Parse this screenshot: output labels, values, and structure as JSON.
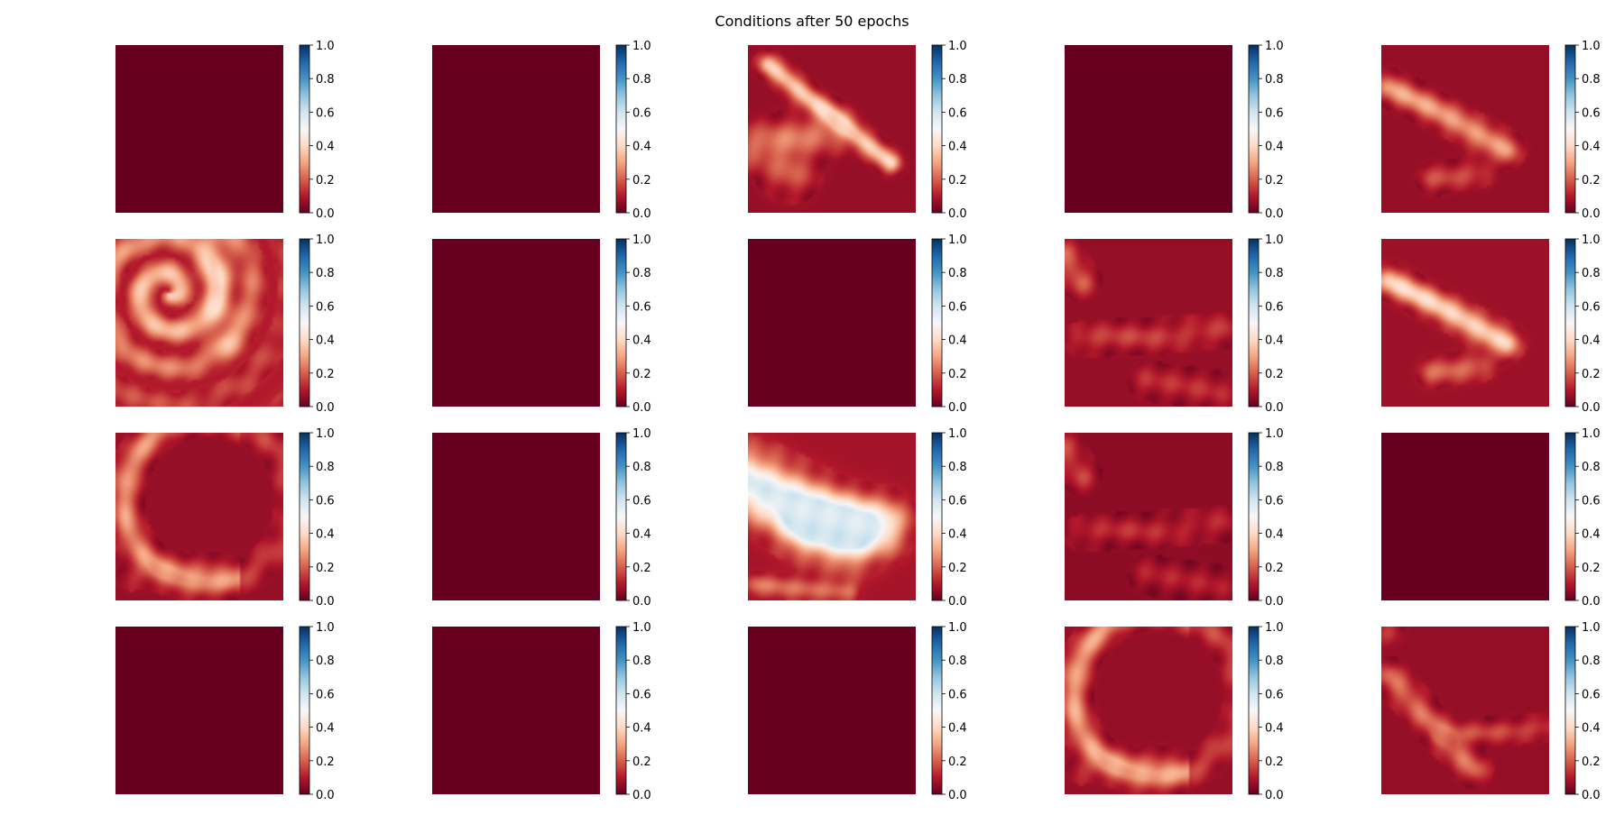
{
  "chart_data": {
    "type": "heatmap",
    "title": "Conditions after 50 epochs",
    "layout": {
      "rows": 4,
      "cols": 5
    },
    "colormap": "RdBu",
    "colormap_stops": [
      "#67001f",
      "#b2182b",
      "#d6604d",
      "#f4a582",
      "#fddbc7",
      "#f7f7f7",
      "#d1e5f0",
      "#92c5de",
      "#4393c3",
      "#2166ac",
      "#053061"
    ],
    "colorbar": {
      "vmin": 0.0,
      "vmax": 1.0,
      "ticks": [
        0.0,
        0.2,
        0.4,
        0.6,
        0.8,
        1.0
      ],
      "tick_labels": [
        "0.0",
        "0.2",
        "0.4",
        "0.6",
        "0.8",
        "1.0"
      ]
    },
    "panels": [
      {
        "row": 1,
        "col": 1,
        "pattern": "uniform",
        "base": 0.0,
        "peak": 0.0
      },
      {
        "row": 1,
        "col": 2,
        "pattern": "uniform",
        "base": 0.0,
        "peak": 0.0
      },
      {
        "row": 1,
        "col": 3,
        "pattern": "diagonal streak with vortex",
        "base": 0.06,
        "peak": 0.38
      },
      {
        "row": 1,
        "col": 4,
        "pattern": "uniform",
        "base": 0.0,
        "peak": 0.0
      },
      {
        "row": 1,
        "col": 5,
        "pattern": "diagonal streak",
        "base": 0.06,
        "peak": 0.3
      },
      {
        "row": 2,
        "col": 1,
        "pattern": "spiral vortex",
        "base": 0.1,
        "peak": 0.38
      },
      {
        "row": 2,
        "col": 2,
        "pattern": "uniform",
        "base": 0.0,
        "peak": 0.0
      },
      {
        "row": 2,
        "col": 3,
        "pattern": "uniform",
        "base": 0.0,
        "peak": 0.0
      },
      {
        "row": 2,
        "col": 4,
        "pattern": "faint filaments",
        "base": 0.06,
        "peak": 0.2
      },
      {
        "row": 2,
        "col": 5,
        "pattern": "diagonal streak",
        "base": 0.07,
        "peak": 0.4
      },
      {
        "row": 3,
        "col": 1,
        "pattern": "arc",
        "base": 0.06,
        "peak": 0.28
      },
      {
        "row": 3,
        "col": 2,
        "pattern": "uniform",
        "base": 0.0,
        "peak": 0.0
      },
      {
        "row": 3,
        "col": 3,
        "pattern": "bright plume",
        "base": 0.08,
        "peak": 0.58
      },
      {
        "row": 3,
        "col": 4,
        "pattern": "faint filaments",
        "base": 0.05,
        "peak": 0.16
      },
      {
        "row": 3,
        "col": 5,
        "pattern": "uniform",
        "base": 0.0,
        "peak": 0.0
      },
      {
        "row": 4,
        "col": 1,
        "pattern": "uniform",
        "base": 0.0,
        "peak": 0.0
      },
      {
        "row": 4,
        "col": 2,
        "pattern": "uniform",
        "base": 0.0,
        "peak": 0.0
      },
      {
        "row": 4,
        "col": 3,
        "pattern": "uniform",
        "base": 0.0,
        "peak": 0.0
      },
      {
        "row": 4,
        "col": 4,
        "pattern": "arc",
        "base": 0.06,
        "peak": 0.3
      },
      {
        "row": 4,
        "col": 5,
        "pattern": "filaments",
        "base": 0.06,
        "peak": 0.22
      }
    ]
  }
}
